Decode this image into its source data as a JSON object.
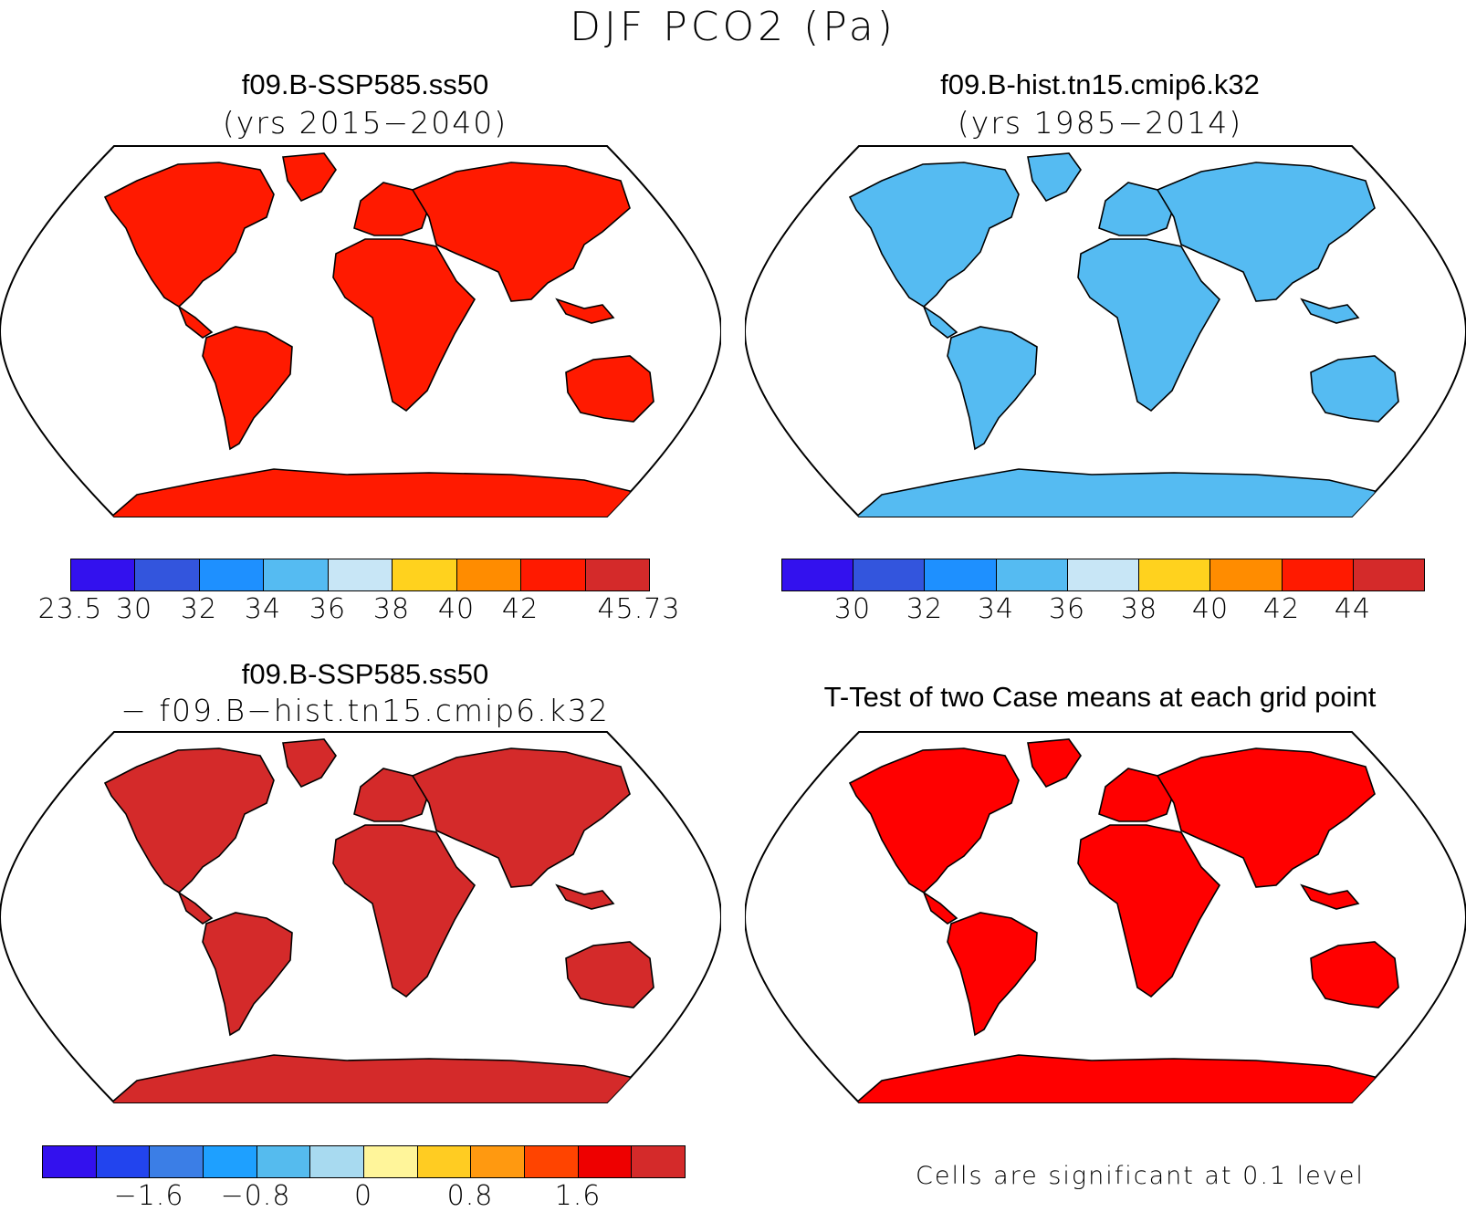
{
  "title": "DJF PCO2 (Pa)",
  "panels": [
    {
      "id": "top-left",
      "title": "f09.B-SSP585.ss50",
      "subtitle": "(yrs 2015−2040)",
      "colorbar": {
        "colors": [
          "#3311ee",
          "#3355dd",
          "#1e90ff",
          "#55bbf2",
          "#c8e6f6",
          "#ffd21e",
          "#ff8c00",
          "#ff1a00",
          "#d42a2a"
        ],
        "labels": [
          "23.5",
          "30",
          "32",
          "34",
          "36",
          "38",
          "40",
          "42",
          "45.73"
        ]
      }
    },
    {
      "id": "top-right",
      "title": "f09.B-hist.tn15.cmip6.k32",
      "subtitle": "(yrs 1985−2014)",
      "colorbar": {
        "colors": [
          "#3311ee",
          "#3355dd",
          "#1e90ff",
          "#55bbf2",
          "#c8e6f6",
          "#ffd21e",
          "#ff8c00",
          "#ff1a00",
          "#d42a2a"
        ],
        "labels": [
          "30",
          "32",
          "34",
          "36",
          "38",
          "40",
          "42",
          "44"
        ]
      }
    },
    {
      "id": "bottom-left",
      "title": "f09.B-SSP585.ss50",
      "subtitle": "− f09.B−hist.tn15.cmip6.k32",
      "colorbar": {
        "colors": [
          "#3311ee",
          "#2244ee",
          "#3b7ee6",
          "#1ea0ff",
          "#55bbee",
          "#a8daf0",
          "#fff59a",
          "#ffcc22",
          "#ff9910",
          "#ff4400",
          "#ee0000",
          "#d42a2a"
        ],
        "labels": [
          "−1.6",
          "−0.8",
          "0",
          "0.8",
          "1.6"
        ]
      }
    },
    {
      "id": "bottom-right",
      "title": "T-Test of two Case means at each grid point",
      "note": "Cells are significant at 0.1 level"
    }
  ],
  "fill_colors": {
    "ocean": "#ffffff",
    "top_left_land": "#ff1a00",
    "top_right_land": "#55bbf2",
    "difference_land": "#d42a2a",
    "ttest_land": "#ff0000"
  }
}
